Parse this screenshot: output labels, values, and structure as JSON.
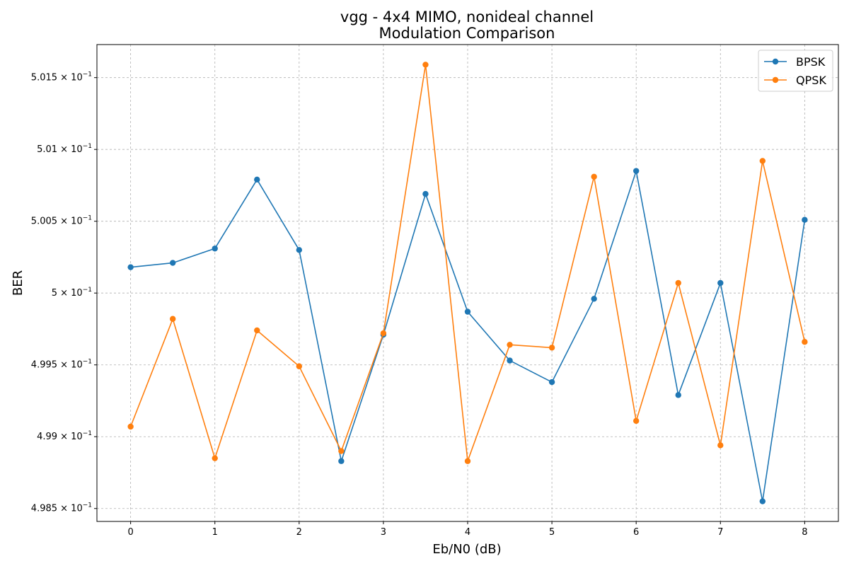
{
  "chart_data": {
    "type": "line",
    "title": "vgg - 4x4 MIMO, nonideal channel",
    "subtitle": "Modulation Comparison",
    "xlabel": "Eb/N0 (dB)",
    "ylabel": "BER",
    "xlim": [
      -0.4,
      8.4
    ],
    "ylim": [
      0.49841,
      0.50173
    ],
    "x_ticks": [
      0,
      1,
      2,
      3,
      4,
      5,
      6,
      7,
      8
    ],
    "x_tick_labels": [
      "0",
      "1",
      "2",
      "3",
      "4",
      "5",
      "6",
      "7",
      "8"
    ],
    "y_ticks": [
      0.4985,
      0.499,
      0.4995,
      0.5,
      0.5005,
      0.501,
      0.5015
    ],
    "y_tick_labels": [
      {
        "mantissa": "4.985",
        "times": "×",
        "base": "10",
        "exp": "−1"
      },
      {
        "mantissa": "4.99",
        "times": "×",
        "base": "10",
        "exp": "−1"
      },
      {
        "mantissa": "4.995",
        "times": "×",
        "base": "10",
        "exp": "−1"
      },
      {
        "mantissa": "5",
        "times": "×",
        "base": "10",
        "exp": "−1"
      },
      {
        "mantissa": "5.005",
        "times": "×",
        "base": "10",
        "exp": "−1"
      },
      {
        "mantissa": "5.01",
        "times": "×",
        "base": "10",
        "exp": "−1"
      },
      {
        "mantissa": "5.015",
        "times": "×",
        "base": "10",
        "exp": "−1"
      }
    ],
    "grid": true,
    "legend_position": "top-right",
    "x": [
      0,
      0.5,
      1,
      1.5,
      2,
      2.5,
      3,
      3.5,
      4,
      4.5,
      5,
      5.5,
      6,
      6.5,
      7,
      7.5,
      8
    ],
    "series": [
      {
        "name": "BPSK",
        "color": "#1f77b4",
        "values": [
          0.50018,
          0.50021,
          0.50031,
          0.50079,
          0.5003,
          0.49883,
          0.49971,
          0.50069,
          0.49987,
          0.49953,
          0.49938,
          0.49996,
          0.50085,
          0.49929,
          0.50007,
          0.49855,
          0.50051
        ]
      },
      {
        "name": "QPSK",
        "color": "#ff7f0e",
        "values": [
          0.49907,
          0.49982,
          0.49885,
          0.49974,
          0.49949,
          0.4989,
          0.49972,
          0.50159,
          0.49883,
          0.49964,
          0.49962,
          0.50081,
          0.49911,
          0.50007,
          0.49894,
          0.50092,
          0.49966
        ]
      }
    ]
  }
}
